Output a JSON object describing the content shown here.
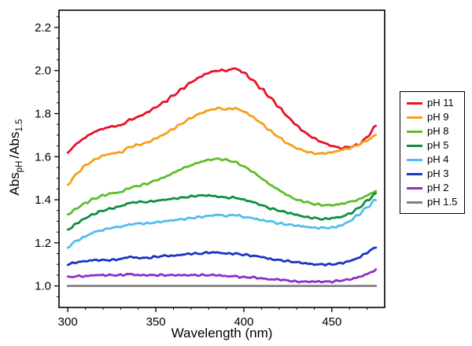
{
  "figure": {
    "background": "#ffffff",
    "frame_color": "#000000"
  },
  "chart_data": {
    "type": "line",
    "title": "",
    "xlabel": "Wavelength (nm)",
    "ylabel": "AbspH/Abs1.5",
    "ylabel_parts": {
      "base1": "Abs",
      "sub1": "pH",
      "base2": "/Abs",
      "sub2": "1.5"
    },
    "xlim": [
      295,
      480
    ],
    "ylim": [
      0.9,
      2.28
    ],
    "xticks": [
      300,
      350,
      400,
      450
    ],
    "xtick_labels": [
      "300",
      "350",
      "400",
      "450"
    ],
    "yticks": [
      1.0,
      1.2,
      1.4,
      1.6,
      1.8,
      2.0,
      2.2
    ],
    "ytick_labels": [
      "1.0",
      "1.2",
      "1.4",
      "1.6",
      "1.8",
      "2.0",
      "2.2"
    ],
    "x_minor_step": 10,
    "y_minor_step": 0.05,
    "grid": false,
    "legend_position": "right-outside",
    "x": [
      300,
      305,
      310,
      315,
      320,
      325,
      330,
      335,
      340,
      345,
      350,
      355,
      360,
      365,
      370,
      375,
      380,
      385,
      390,
      395,
      400,
      405,
      410,
      415,
      420,
      425,
      430,
      435,
      440,
      445,
      450,
      455,
      460,
      465,
      470,
      475
    ],
    "series": [
      {
        "name": "pH 11",
        "color": "#e8112a",
        "values": [
          1.62,
          1.66,
          1.69,
          1.715,
          1.73,
          1.74,
          1.745,
          1.77,
          1.785,
          1.805,
          1.83,
          1.855,
          1.885,
          1.915,
          1.945,
          1.97,
          1.99,
          2.0,
          2.0,
          2.01,
          1.99,
          1.955,
          1.915,
          1.875,
          1.83,
          1.785,
          1.745,
          1.71,
          1.685,
          1.665,
          1.65,
          1.64,
          1.645,
          1.655,
          1.69,
          1.745
        ]
      },
      {
        "name": "pH 9",
        "color": "#f6a01a",
        "values": [
          1.47,
          1.52,
          1.56,
          1.585,
          1.605,
          1.615,
          1.62,
          1.645,
          1.655,
          1.665,
          1.685,
          1.705,
          1.73,
          1.755,
          1.78,
          1.8,
          1.815,
          1.825,
          1.82,
          1.825,
          1.81,
          1.785,
          1.755,
          1.72,
          1.69,
          1.66,
          1.64,
          1.625,
          1.615,
          1.615,
          1.62,
          1.63,
          1.64,
          1.655,
          1.675,
          1.7
        ]
      },
      {
        "name": "pH 8",
        "color": "#5cbe2a",
        "values": [
          1.33,
          1.36,
          1.385,
          1.405,
          1.42,
          1.43,
          1.435,
          1.455,
          1.465,
          1.475,
          1.49,
          1.505,
          1.525,
          1.545,
          1.56,
          1.575,
          1.585,
          1.59,
          1.585,
          1.575,
          1.555,
          1.53,
          1.5,
          1.47,
          1.445,
          1.42,
          1.4,
          1.39,
          1.38,
          1.375,
          1.375,
          1.38,
          1.39,
          1.4,
          1.42,
          1.44
        ]
      },
      {
        "name": "pH 5",
        "color": "#0e8f40",
        "values": [
          1.26,
          1.29,
          1.315,
          1.335,
          1.35,
          1.36,
          1.37,
          1.385,
          1.39,
          1.39,
          1.395,
          1.4,
          1.405,
          1.41,
          1.415,
          1.42,
          1.42,
          1.415,
          1.41,
          1.41,
          1.4,
          1.39,
          1.375,
          1.36,
          1.35,
          1.34,
          1.33,
          1.32,
          1.315,
          1.31,
          1.315,
          1.32,
          1.335,
          1.36,
          1.395,
          1.43
        ]
      },
      {
        "name": "pH 4",
        "color": "#52bdec",
        "values": [
          1.18,
          1.21,
          1.23,
          1.25,
          1.26,
          1.27,
          1.275,
          1.285,
          1.29,
          1.29,
          1.295,
          1.3,
          1.305,
          1.31,
          1.315,
          1.32,
          1.325,
          1.33,
          1.325,
          1.33,
          1.32,
          1.315,
          1.305,
          1.3,
          1.29,
          1.285,
          1.28,
          1.275,
          1.27,
          1.27,
          1.27,
          1.28,
          1.3,
          1.33,
          1.365,
          1.4
        ]
      },
      {
        "name": "pH 3",
        "color": "#1a35c2",
        "values": [
          1.1,
          1.11,
          1.115,
          1.12,
          1.12,
          1.12,
          1.125,
          1.135,
          1.13,
          1.13,
          1.135,
          1.14,
          1.14,
          1.145,
          1.15,
          1.15,
          1.155,
          1.155,
          1.15,
          1.15,
          1.145,
          1.14,
          1.135,
          1.125,
          1.12,
          1.115,
          1.11,
          1.105,
          1.1,
          1.1,
          1.1,
          1.105,
          1.115,
          1.13,
          1.155,
          1.18
        ]
      },
      {
        "name": "pH 2",
        "color": "#8c2fc8",
        "values": [
          1.04,
          1.045,
          1.045,
          1.05,
          1.05,
          1.05,
          1.05,
          1.055,
          1.05,
          1.05,
          1.05,
          1.05,
          1.05,
          1.05,
          1.05,
          1.05,
          1.05,
          1.05,
          1.045,
          1.045,
          1.04,
          1.04,
          1.035,
          1.03,
          1.03,
          1.025,
          1.02,
          1.02,
          1.02,
          1.02,
          1.02,
          1.025,
          1.03,
          1.04,
          1.055,
          1.075
        ]
      },
      {
        "name": "pH 1.5",
        "color": "#808080",
        "values": [
          1.0,
          1.0,
          1.0,
          1.0,
          1.0,
          1.0,
          1.0,
          1.0,
          1.0,
          1.0,
          1.0,
          1.0,
          1.0,
          1.0,
          1.0,
          1.0,
          1.0,
          1.0,
          1.0,
          1.0,
          1.0,
          1.0,
          1.0,
          1.0,
          1.0,
          1.0,
          1.0,
          1.0,
          1.0,
          1.0,
          1.0,
          1.0,
          1.0,
          1.0,
          1.0,
          1.0
        ]
      }
    ]
  }
}
